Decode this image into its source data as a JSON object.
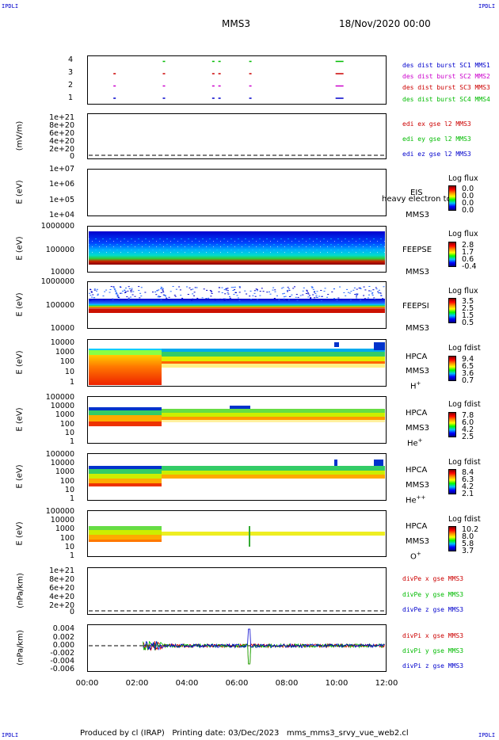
{
  "header": {
    "logo": "IPDLI",
    "mission": "MMS3",
    "datetime": "18/Nov/2020 00:00"
  },
  "footer": {
    "text": "Produced by cl (IRAP)   Printing date: 03/Dec/2023   mms_mms3_srvy_vue_web2.cl"
  },
  "x_axis": {
    "ticks": [
      "00:00",
      "02:00",
      "04:00",
      "06:00",
      "08:00",
      "10:00",
      "12:00"
    ]
  },
  "colors": {
    "mms1": "#0000cc",
    "mms2": "#cc00cc",
    "mms3": "#cc0000",
    "mms4": "#00bb00"
  },
  "chart_data": [
    {
      "type": "scatter",
      "panel": "burst",
      "yticks": [
        "4",
        "3",
        "2",
        "1"
      ],
      "ylim": [
        0.5,
        4.5
      ],
      "series": [
        {
          "name": "des dist burst SC1 MMS1",
          "y": 1,
          "x_hours": [
            1.0,
            3.0,
            5.0,
            5.25,
            6.5,
            10.0
          ]
        },
        {
          "name": "des dist burst SC2 MMS2",
          "y": 2,
          "x_hours": [
            1.0,
            3.0,
            5.0,
            5.25,
            6.5,
            10.0
          ]
        },
        {
          "name": "des dist burst SC3 MMS3",
          "y": 3,
          "x_hours": [
            1.0,
            3.0,
            5.0,
            5.25,
            6.5,
            10.0
          ]
        },
        {
          "name": "des dist burst SC4 MMS4",
          "y": 4,
          "x_hours": [
            3.0,
            5.0,
            5.25,
            6.5,
            10.0
          ]
        }
      ]
    },
    {
      "type": "line",
      "panel": "edi",
      "ylabel": "(mV/m)",
      "yticks": [
        "1e+21",
        "8e+20",
        "6e+20",
        "4e+20",
        "2e+20",
        "0"
      ],
      "series": [
        {
          "name": "edi ex gse l2 MMS3"
        },
        {
          "name": "edi ey gse l2 MMS3"
        },
        {
          "name": "edi ez gse l2 MMS3"
        }
      ]
    },
    {
      "type": "heatmap",
      "panel": "eis",
      "ylabel": "E (eV)",
      "yticks": [
        "1e+07",
        "1e+06",
        "1e+05",
        "1e+04"
      ],
      "instrument": [
        "EIS",
        "heavy electron to",
        "MMS3"
      ],
      "colorbar": {
        "label": "Log flux",
        "ticks": [
          "0.0",
          "0.0",
          "0.0",
          "0.0"
        ]
      }
    },
    {
      "type": "heatmap",
      "panel": "feepse",
      "ylabel": "E (eV)",
      "yticks": [
        "1000000",
        "100000",
        "10000"
      ],
      "instrument": [
        "FEEPSE",
        "MMS3"
      ],
      "colorbar": {
        "label": "Log flux",
        "ticks": [
          "2.8",
          "1.7",
          "0.6",
          "-0.4"
        ]
      }
    },
    {
      "type": "heatmap",
      "panel": "feepsi",
      "ylabel": "E (eV)",
      "yticks": [
        "1000000",
        "100000",
        "10000"
      ],
      "instrument": [
        "FEEPSI",
        "MMS3"
      ],
      "colorbar": {
        "label": "Log flux",
        "ticks": [
          "3.5",
          "2.5",
          "1.5",
          "0.5"
        ]
      }
    },
    {
      "type": "heatmap",
      "panel": "hpca_h",
      "ylabel": "E (eV)",
      "yticks": [
        "10000",
        "1000",
        "100",
        "10",
        "1"
      ],
      "instrument": [
        "HPCA",
        "MMS3",
        "H",
        "+"
      ],
      "colorbar": {
        "label": "Log fdist",
        "ticks": [
          "9.4",
          "6.5",
          "3.6",
          "0.7"
        ]
      }
    },
    {
      "type": "heatmap",
      "panel": "hpca_he",
      "ylabel": "E (eV)",
      "yticks": [
        "100000",
        "10000",
        "1000",
        "100",
        "10",
        "1"
      ],
      "instrument": [
        "HPCA",
        "MMS3",
        "He",
        "+"
      ],
      "colorbar": {
        "label": "Log fdist",
        "ticks": [
          "7.8",
          "6.0",
          "4.2",
          "2.5"
        ]
      }
    },
    {
      "type": "heatmap",
      "panel": "hpca_hepp",
      "ylabel": "E (eV)",
      "yticks": [
        "100000",
        "10000",
        "1000",
        "100",
        "10",
        "1"
      ],
      "instrument": [
        "HPCA",
        "MMS3",
        "He",
        "++"
      ],
      "colorbar": {
        "label": "Log fdist",
        "ticks": [
          "8.4",
          "6.3",
          "4.2",
          "2.1"
        ]
      }
    },
    {
      "type": "heatmap",
      "panel": "hpca_o",
      "ylabel": "E (eV)",
      "yticks": [
        "100000",
        "10000",
        "1000",
        "100",
        "10",
        "1"
      ],
      "instrument": [
        "HPCA",
        "MMS3",
        "O",
        "+"
      ],
      "colorbar": {
        "label": "Log fdist",
        "ticks": [
          "10.2",
          "8.0",
          "5.8",
          "3.7"
        ]
      }
    },
    {
      "type": "line",
      "panel": "divpe",
      "ylabel": "(nPa/km)",
      "yticks": [
        "1e+21",
        "8e+20",
        "6e+20",
        "4e+20",
        "2e+20",
        "0"
      ],
      "series": [
        {
          "name": "divPe x gse MMS3"
        },
        {
          "name": "divPe y gse MMS3"
        },
        {
          "name": "divPe z gse MMS3"
        }
      ]
    },
    {
      "type": "line",
      "panel": "divpi",
      "ylabel": "(nPa/km)",
      "yticks": [
        "0.004",
        "0.002",
        "0.000",
        "-0.002",
        "-0.004",
        "-0.006"
      ],
      "ylim": [
        -0.007,
        0.005
      ],
      "series": [
        {
          "name": "divPi x gse MMS3"
        },
        {
          "name": "divPi y gse MMS3"
        },
        {
          "name": "divPi z gse MMS3"
        }
      ]
    }
  ]
}
